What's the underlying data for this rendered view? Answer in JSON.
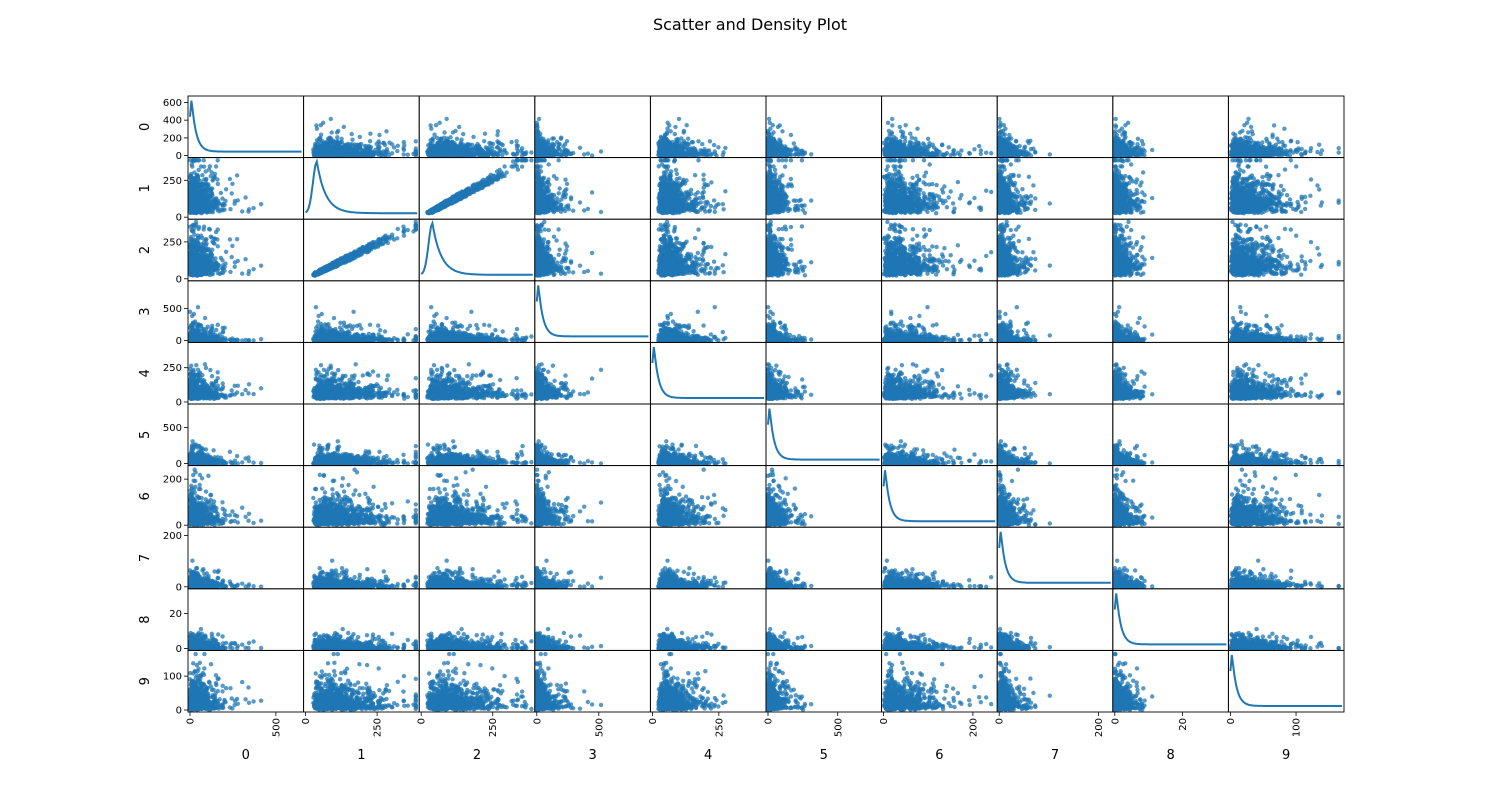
{
  "figure": {
    "title": "Scatter and Density Plot"
  },
  "chart_data": {
    "type": "scatter",
    "title": "Scatter and Density Plot",
    "diagonal": "density",
    "grid": false,
    "color": "#1f77b4",
    "variables": [
      {
        "name": "0",
        "range": [
          0,
          650
        ],
        "ticks_y": [
          0,
          200,
          400,
          600
        ],
        "ticks_x": [
          0,
          500
        ]
      },
      {
        "name": "1",
        "range": [
          0,
          390
        ],
        "ticks_y": [
          0,
          250
        ],
        "ticks_x": [
          0,
          250
        ]
      },
      {
        "name": "2",
        "range": [
          0,
          390
        ],
        "ticks_y": [
          0,
          250
        ],
        "ticks_x": [
          0,
          250
        ]
      },
      {
        "name": "3",
        "range": [
          0,
          900
        ],
        "ticks_y": [
          0,
          500
        ],
        "ticks_x": [
          0,
          500
        ]
      },
      {
        "name": "4",
        "range": [
          0,
          420
        ],
        "ticks_y": [
          0,
          250
        ],
        "ticks_x": [
          0,
          250
        ]
      },
      {
        "name": "5",
        "range": [
          0,
          800
        ],
        "ticks_y": [
          0,
          500
        ],
        "ticks_x": [
          0,
          500
        ]
      },
      {
        "name": "6",
        "range": [
          0,
          250
        ],
        "ticks_y": [
          0,
          200
        ],
        "ticks_x": [
          0,
          200
        ]
      },
      {
        "name": "7",
        "range": [
          0,
          225
        ],
        "ticks_y": [
          0,
          200
        ],
        "ticks_x": [
          0,
          200
        ]
      },
      {
        "name": "8",
        "range": [
          0,
          33
        ],
        "ticks_y": [
          0,
          20
        ],
        "ticks_x": [
          0,
          20
        ]
      },
      {
        "name": "9",
        "range": [
          0,
          170
        ],
        "ticks_y": [
          0,
          100
        ],
        "ticks_x": [
          0,
          100
        ]
      }
    ]
  }
}
